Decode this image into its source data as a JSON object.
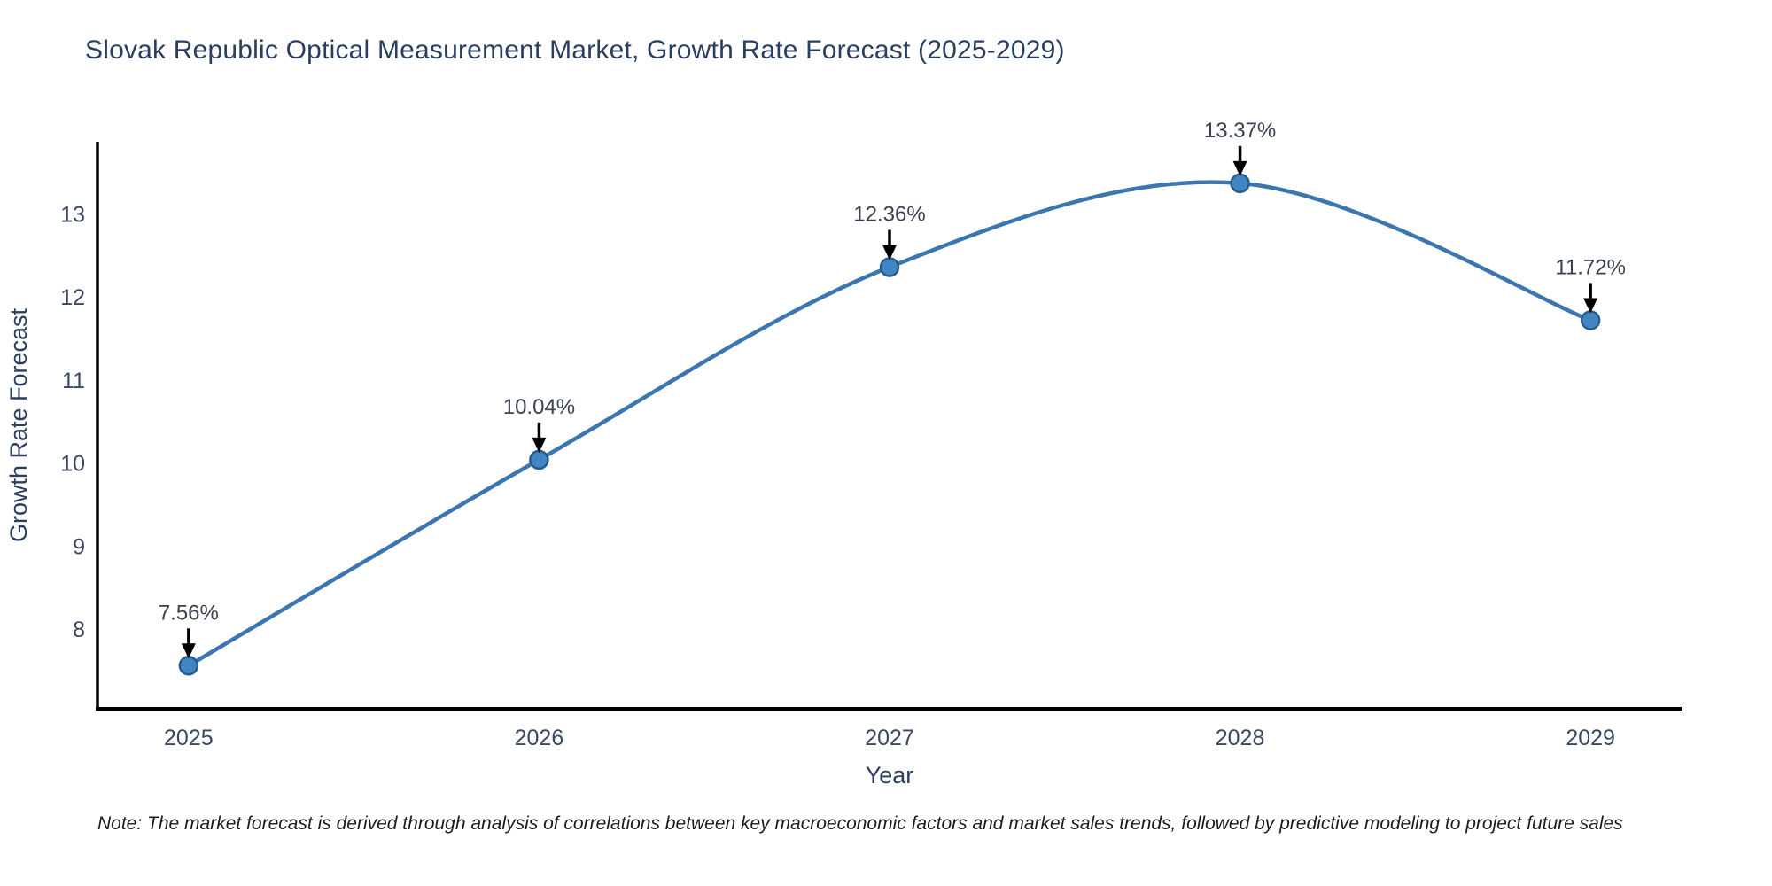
{
  "title": "Slovak Republic Optical Measurement Market, Growth Rate Forecast (2025-2029)",
  "footnote": "Note: The market forecast is derived through analysis of correlations between key macroeconomic factors and market sales trends, followed by predictive modeling to project future sales",
  "chart_data": {
    "type": "line",
    "line_shape": "spline",
    "x": [
      2025,
      2026,
      2027,
      2028,
      2029
    ],
    "y": [
      7.56,
      10.04,
      12.36,
      13.37,
      11.72
    ],
    "point_labels": [
      "7.56%",
      "10.04%",
      "12.36%",
      "13.37%",
      "11.72%"
    ],
    "xlabel": "Year",
    "ylabel": "Growth Rate Forecast",
    "xtick_labels": [
      "2025",
      "2026",
      "2027",
      "2028",
      "2029"
    ],
    "yticks": [
      8,
      9,
      10,
      11,
      12,
      13
    ],
    "xlim": [
      2024.74,
      2029.26
    ],
    "ylim": [
      7.04,
      13.87
    ],
    "grid": false,
    "legend": "none",
    "annotation_arrows": "black, pointing down from each percent label to its marker",
    "colors": {
      "line": "#3c76b0",
      "marker_fill": "#4186c3",
      "marker_edge": "#275d8b",
      "axis_spine": "#000000",
      "title_text": "#2a3f5f",
      "tick_text": "#3b4861",
      "annotation_text": "#3a4150",
      "arrow": "#000000",
      "background": "#ffffff"
    }
  }
}
